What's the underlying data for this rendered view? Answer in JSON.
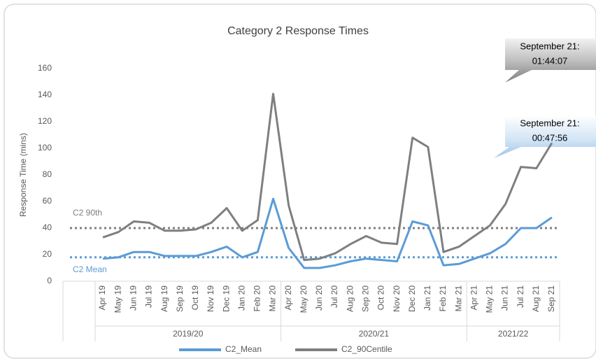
{
  "chart_data": {
    "type": "line",
    "title": "Category 2 Response Times",
    "y_label": "Response Time (mins)",
    "categories": [
      "Apr 19",
      "May 19",
      "Jun 19",
      "Jul 19",
      "Aug 19",
      "Sep 19",
      "Oct 19",
      "Nov 19",
      "Dec 19",
      "Jan 20",
      "Feb 20",
      "Mar 20",
      "Apr 20",
      "May 20",
      "Jun 20",
      "Jul 20",
      "Aug 20",
      "Sep 20",
      "Oct 20",
      "Nov 20",
      "Dec 20",
      "Jan 21",
      "Feb 21",
      "Mar 21",
      "Apr 21",
      "May 21",
      "Jun 21",
      "Jul 21",
      "Aug 21",
      "Sep 21"
    ],
    "groups": [
      "2019/20",
      "2020/21",
      "2021/22"
    ],
    "series": [
      {
        "name": "C2_Mean",
        "color": "#5b9bd5",
        "values": [
          17,
          18,
          22,
          22,
          19,
          19,
          19,
          22,
          26,
          18,
          22,
          62,
          25,
          10,
          10,
          12,
          15,
          17,
          16,
          15,
          45,
          42,
          12,
          13,
          17,
          21,
          28,
          40,
          40,
          48
        ]
      },
      {
        "name": "C2_90Centile",
        "color": "#7f7f7f",
        "values": [
          33,
          37,
          45,
          44,
          38,
          38,
          39,
          44,
          55,
          38,
          46,
          141,
          57,
          16,
          17,
          21,
          28,
          34,
          29,
          28,
          108,
          101,
          22,
          26,
          34,
          42,
          58,
          86,
          85,
          104
        ]
      }
    ],
    "reference_lines": [
      {
        "label": "C2 90th",
        "value": 40,
        "color": "#7f7f7f"
      },
      {
        "label": "C2 Mean",
        "value": 18,
        "color": "#5b9bd5"
      }
    ],
    "annotations": [
      {
        "lines": [
          "September 21:",
          "01:44:07"
        ]
      },
      {
        "lines": [
          "September 21:",
          "00:47:56"
        ]
      }
    ],
    "ylim": [
      0,
      160
    ],
    "yticks": [
      0,
      20,
      40,
      60,
      80,
      100,
      120,
      140,
      160
    ],
    "grid": false
  }
}
